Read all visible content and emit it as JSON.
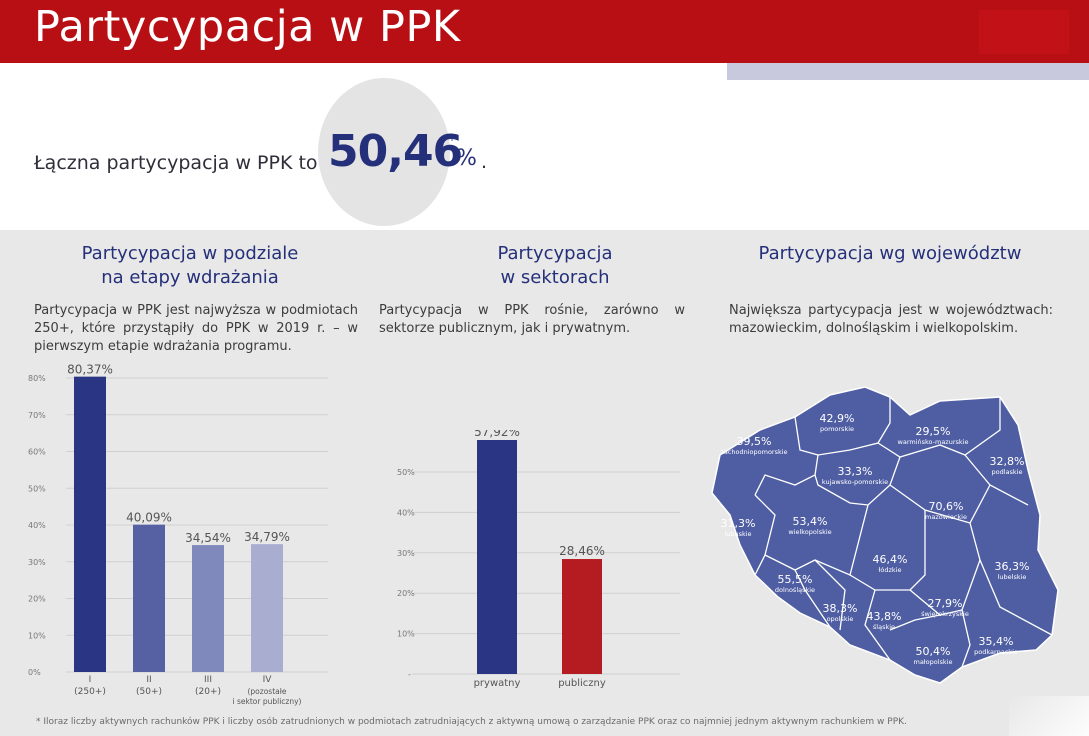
{
  "header": {
    "title": "Partycypacja w PPK"
  },
  "intro": {
    "text": "Łączna partycypacja w PPK to",
    "value": "50,46",
    "star": "*",
    "pct": "%",
    "dot": "."
  },
  "sections": {
    "stages": {
      "title_line1": "Partycypacja w podziale",
      "title_line2": "na etapy wdrażania",
      "desc": "Partycypacja w PPK jest najwyższa w podmiotach 250+, które przystąpiły do PPK w 2019 r. – w pierwszym etapie wdrażania programu."
    },
    "sectors": {
      "title_line1": "Partycypacja",
      "title_line2": "w sektorach",
      "desc": "Partycypacja w PPK rośnie, zarówno w sektorze publicznym, jak i prywatnym."
    },
    "regions": {
      "title": "Partycypacja wg województw",
      "desc": "Największa partycypacja jest w województwach: mazowieckim, dolnośląskim i wielkopolskim."
    }
  },
  "chart_data": [
    {
      "type": "bar",
      "title": "Partycypacja w podziale na etapy wdrażania",
      "categories": [
        "I",
        "II",
        "III",
        "IV"
      ],
      "category_sublabels": [
        "(250+)",
        "(50+)",
        "(20+)",
        "(pozostałe|i sektor publiczny)"
      ],
      "values": [
        80.37,
        40.09,
        34.54,
        34.79
      ],
      "value_labels": [
        "80,37%",
        "40,09%",
        "34,54%",
        "34,79%"
      ],
      "colors": [
        "#2a3583",
        "#5561a3",
        "#8089bb",
        "#a9aed1"
      ],
      "yticks": [
        "0%",
        "10%",
        "20%",
        "30%",
        "40%",
        "50%",
        "60%",
        "70%",
        "80%"
      ],
      "ylim": [
        0,
        80
      ],
      "grid": true
    },
    {
      "type": "bar",
      "title": "Partycypacja w sektorach",
      "categories": [
        "prywatny",
        "publiczny"
      ],
      "values": [
        57.92,
        28.46
      ],
      "value_labels": [
        "57,92%",
        "28,46%"
      ],
      "colors": [
        "#2a3583",
        "#b51c22"
      ],
      "yticks": [
        "-",
        "10%",
        "20%",
        "30%",
        "40%",
        "50%"
      ],
      "ylim": [
        0,
        50
      ],
      "grid": true
    },
    {
      "type": "map",
      "title": "Partycypacja wg województw",
      "regions": [
        {
          "name": "pomorskie",
          "value": "42,9%"
        },
        {
          "name": "warmińsko-mazurskie",
          "value": "29,5%"
        },
        {
          "name": "zachodniopomorskie",
          "value": "39,5%"
        },
        {
          "name": "podlaskie",
          "value": "32,8%"
        },
        {
          "name": "kujawsko-pomorskie",
          "value": "33,3%"
        },
        {
          "name": "lubuskie",
          "value": "31,3%"
        },
        {
          "name": "wielkopolskie",
          "value": "53,4%"
        },
        {
          "name": "mazowieckie",
          "value": "70,6%"
        },
        {
          "name": "łódzkie",
          "value": "46,4%"
        },
        {
          "name": "lubelskie",
          "value": "36,3%"
        },
        {
          "name": "dolnośląskie",
          "value": "55,5%"
        },
        {
          "name": "opolskie",
          "value": "38,3%"
        },
        {
          "name": "śląskie",
          "value": "43,8%"
        },
        {
          "name": "świętokrzyskie",
          "value": "27,9%"
        },
        {
          "name": "małopolskie",
          "value": "50,4%"
        },
        {
          "name": "podkarpackie",
          "value": "35,4%"
        }
      ],
      "fill": "#4f5ea3"
    }
  ],
  "footnote": "* Iloraz liczby aktywnych rachunków PPK i liczby osób zatrudnionych w podmiotach zatrudniających z aktywną umową o zarządzanie PPK oraz co najmniej jednym aktywnym rachunkiem w PPK."
}
